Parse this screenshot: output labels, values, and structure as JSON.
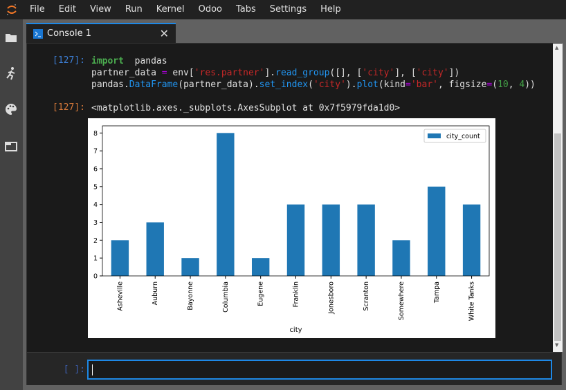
{
  "menu": [
    "File",
    "Edit",
    "View",
    "Run",
    "Kernel",
    "Odoo",
    "Tabs",
    "Settings",
    "Help"
  ],
  "tab": {
    "label": "Console 1"
  },
  "cell": {
    "in_prompt": "[127]:",
    "out_prompt": "[127]:",
    "code_lines": [
      [
        [
          "kw",
          "import"
        ],
        [
          "",
          "  pandas"
        ]
      ],
      [
        [
          "",
          "partner_data "
        ],
        [
          "op",
          "="
        ],
        [
          "",
          " env["
        ],
        [
          "str",
          "'res.partner'"
        ],
        [
          "",
          "]."
        ],
        [
          "fn",
          "read_group"
        ],
        [
          "",
          "([], ["
        ],
        [
          "str",
          "'city'"
        ],
        [
          "",
          "], ["
        ],
        [
          "str",
          "'city'"
        ],
        [
          "",
          "])"
        ]
      ],
      [
        [
          "",
          "pandas."
        ],
        [
          "fn",
          "DataFrame"
        ],
        [
          "",
          "(partner_data)."
        ],
        [
          "fn",
          "set_index"
        ],
        [
          "",
          "("
        ],
        [
          "str",
          "'city'"
        ],
        [
          "",
          ")."
        ],
        [
          "fn",
          "plot"
        ],
        [
          "",
          "(kind"
        ],
        [
          "op",
          "="
        ],
        [
          "str",
          "'bar'"
        ],
        [
          "",
          ", figsize"
        ],
        [
          "op",
          "="
        ],
        [
          "",
          "("
        ],
        [
          "num",
          "10"
        ],
        [
          "",
          ", "
        ],
        [
          "num",
          "4"
        ],
        [
          "",
          "))"
        ]
      ]
    ],
    "output_text": "<matplotlib.axes._subplots.AxesSubplot at 0x7f5979fda1d0>"
  },
  "input": {
    "prompt": "[ ]:",
    "value": ""
  },
  "chart_data": {
    "type": "bar",
    "categories": [
      "Asheville",
      "Auburn",
      "Bayonne",
      "Columbia",
      "Eugene",
      "Franklin",
      "Jonesboro",
      "Scranton",
      "Somewhere",
      "Tampa",
      "White Tanks"
    ],
    "series": [
      {
        "name": "city_count",
        "values": [
          2,
          3,
          1,
          8,
          1,
          4,
          4,
          4,
          2,
          5,
          4
        ]
      }
    ],
    "xlabel": "city",
    "ylabel": "",
    "ylim": [
      0,
      8.4
    ],
    "yticks": [
      0,
      1,
      2,
      3,
      4,
      5,
      6,
      7,
      8
    ],
    "legend": "top-right",
    "grid": false,
    "color": "#1f77b4"
  }
}
